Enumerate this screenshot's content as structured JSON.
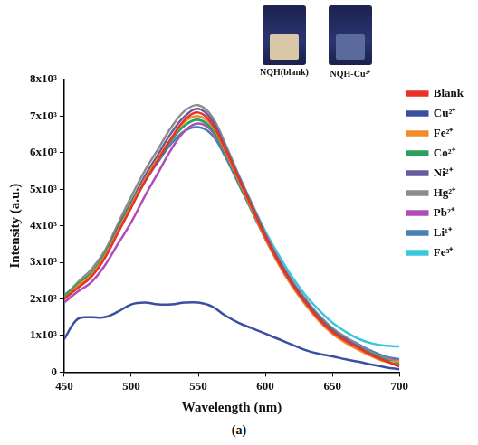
{
  "chart_data": {
    "type": "line",
    "xlabel": "Wavelength (nm)",
    "ylabel": "Intensity (a.u.)",
    "annotations": [
      "NQH(blank)",
      "NQH-Cu²⁺"
    ],
    "caption": "(a)",
    "x": [
      450,
      460,
      470,
      480,
      490,
      500,
      510,
      520,
      530,
      540,
      550,
      560,
      570,
      580,
      590,
      600,
      610,
      620,
      630,
      640,
      650,
      660,
      670,
      680,
      690,
      700
    ],
    "series": [
      {
        "name": "Blank",
        "color": "#e8312a",
        "values": [
          2000,
          2300,
          2600,
          3100,
          3800,
          4500,
          5200,
          5800,
          6400,
          6900,
          7100,
          6800,
          6100,
          5300,
          4500,
          3700,
          3000,
          2400,
          1900,
          1450,
          1100,
          850,
          650,
          450,
          300,
          150
        ]
      },
      {
        "name": "Cu²⁺",
        "color": "#3a4fa0",
        "values": [
          900,
          1450,
          1500,
          1500,
          1650,
          1850,
          1900,
          1850,
          1850,
          1900,
          1900,
          1800,
          1550,
          1350,
          1200,
          1050,
          900,
          750,
          600,
          500,
          430,
          350,
          280,
          200,
          130,
          80
        ]
      },
      {
        "name": "Fe²⁺",
        "color": "#f28c28",
        "values": [
          2000,
          2350,
          2650,
          3150,
          3850,
          4550,
          5250,
          5850,
          6400,
          6850,
          7000,
          6750,
          6050,
          5250,
          4450,
          3650,
          2950,
          2350,
          1850,
          1400,
          1050,
          800,
          600,
          420,
          280,
          300
        ]
      },
      {
        "name": "Co²⁺",
        "color": "#2ca05a",
        "values": [
          2050,
          2400,
          2700,
          3200,
          3900,
          4600,
          5250,
          5800,
          6350,
          6750,
          6900,
          6650,
          6000,
          5200,
          4400,
          3650,
          2950,
          2350,
          1850,
          1450,
          1100,
          850,
          650,
          480,
          330,
          200
        ]
      },
      {
        "name": "Ni²⁺",
        "color": "#6a5a9c",
        "values": [
          2000,
          2350,
          2700,
          3200,
          3950,
          4650,
          5350,
          5950,
          6550,
          7000,
          7200,
          6900,
          6150,
          5350,
          4550,
          3750,
          3050,
          2450,
          1950,
          1500,
          1150,
          900,
          680,
          480,
          330,
          200
        ]
      },
      {
        "name": "Hg²⁺",
        "color": "#8c8c8c",
        "values": [
          2050,
          2450,
          2800,
          3300,
          4050,
          4800,
          5500,
          6100,
          6700,
          7150,
          7300,
          7000,
          6250,
          5400,
          4600,
          3800,
          3100,
          2500,
          2000,
          1550,
          1200,
          950,
          720,
          520,
          380,
          250
        ]
      },
      {
        "name": "Pb²⁺",
        "color": "#b04cb8",
        "values": [
          1900,
          2200,
          2450,
          2900,
          3500,
          4100,
          4800,
          5450,
          6100,
          6600,
          6800,
          6600,
          6000,
          5250,
          4450,
          3700,
          3000,
          2400,
          1900,
          1500,
          1150,
          900,
          700,
          520,
          380,
          300
        ]
      },
      {
        "name": "Li¹⁺",
        "color": "#4a7fb5",
        "values": [
          2100,
          2400,
          2700,
          3150,
          3850,
          4550,
          5200,
          5750,
          6250,
          6600,
          6700,
          6500,
          5900,
          5150,
          4400,
          3650,
          3000,
          2400,
          1950,
          1550,
          1200,
          950,
          750,
          560,
          420,
          350
        ]
      },
      {
        "name": "Fe³⁺",
        "color": "#3cc8dc",
        "values": [
          2100,
          2400,
          2700,
          3150,
          3850,
          4550,
          5200,
          5800,
          6350,
          6750,
          6900,
          6700,
          6100,
          5350,
          4600,
          3850,
          3200,
          2600,
          2100,
          1700,
          1350,
          1100,
          900,
          780,
          720,
          700
        ]
      }
    ],
    "xlim": [
      450,
      700
    ],
    "xticks": [
      450,
      500,
      550,
      600,
      650,
      700
    ],
    "ylim": [
      0,
      8000
    ],
    "yticks": [
      0,
      {
        "value": 1000,
        "label": "1x10³"
      },
      {
        "value": 2000,
        "label": "2x10³"
      },
      {
        "value": 3000,
        "label": "3x10³"
      },
      {
        "value": 4000,
        "label": "4x10³"
      },
      {
        "value": 5000,
        "label": "5x10³"
      },
      {
        "value": 6000,
        "label": "6x10³"
      },
      {
        "value": 7000,
        "label": "7x10³"
      },
      {
        "value": 8000,
        "label": "8x10³"
      }
    ],
    "grid": false,
    "legend": "right"
  }
}
